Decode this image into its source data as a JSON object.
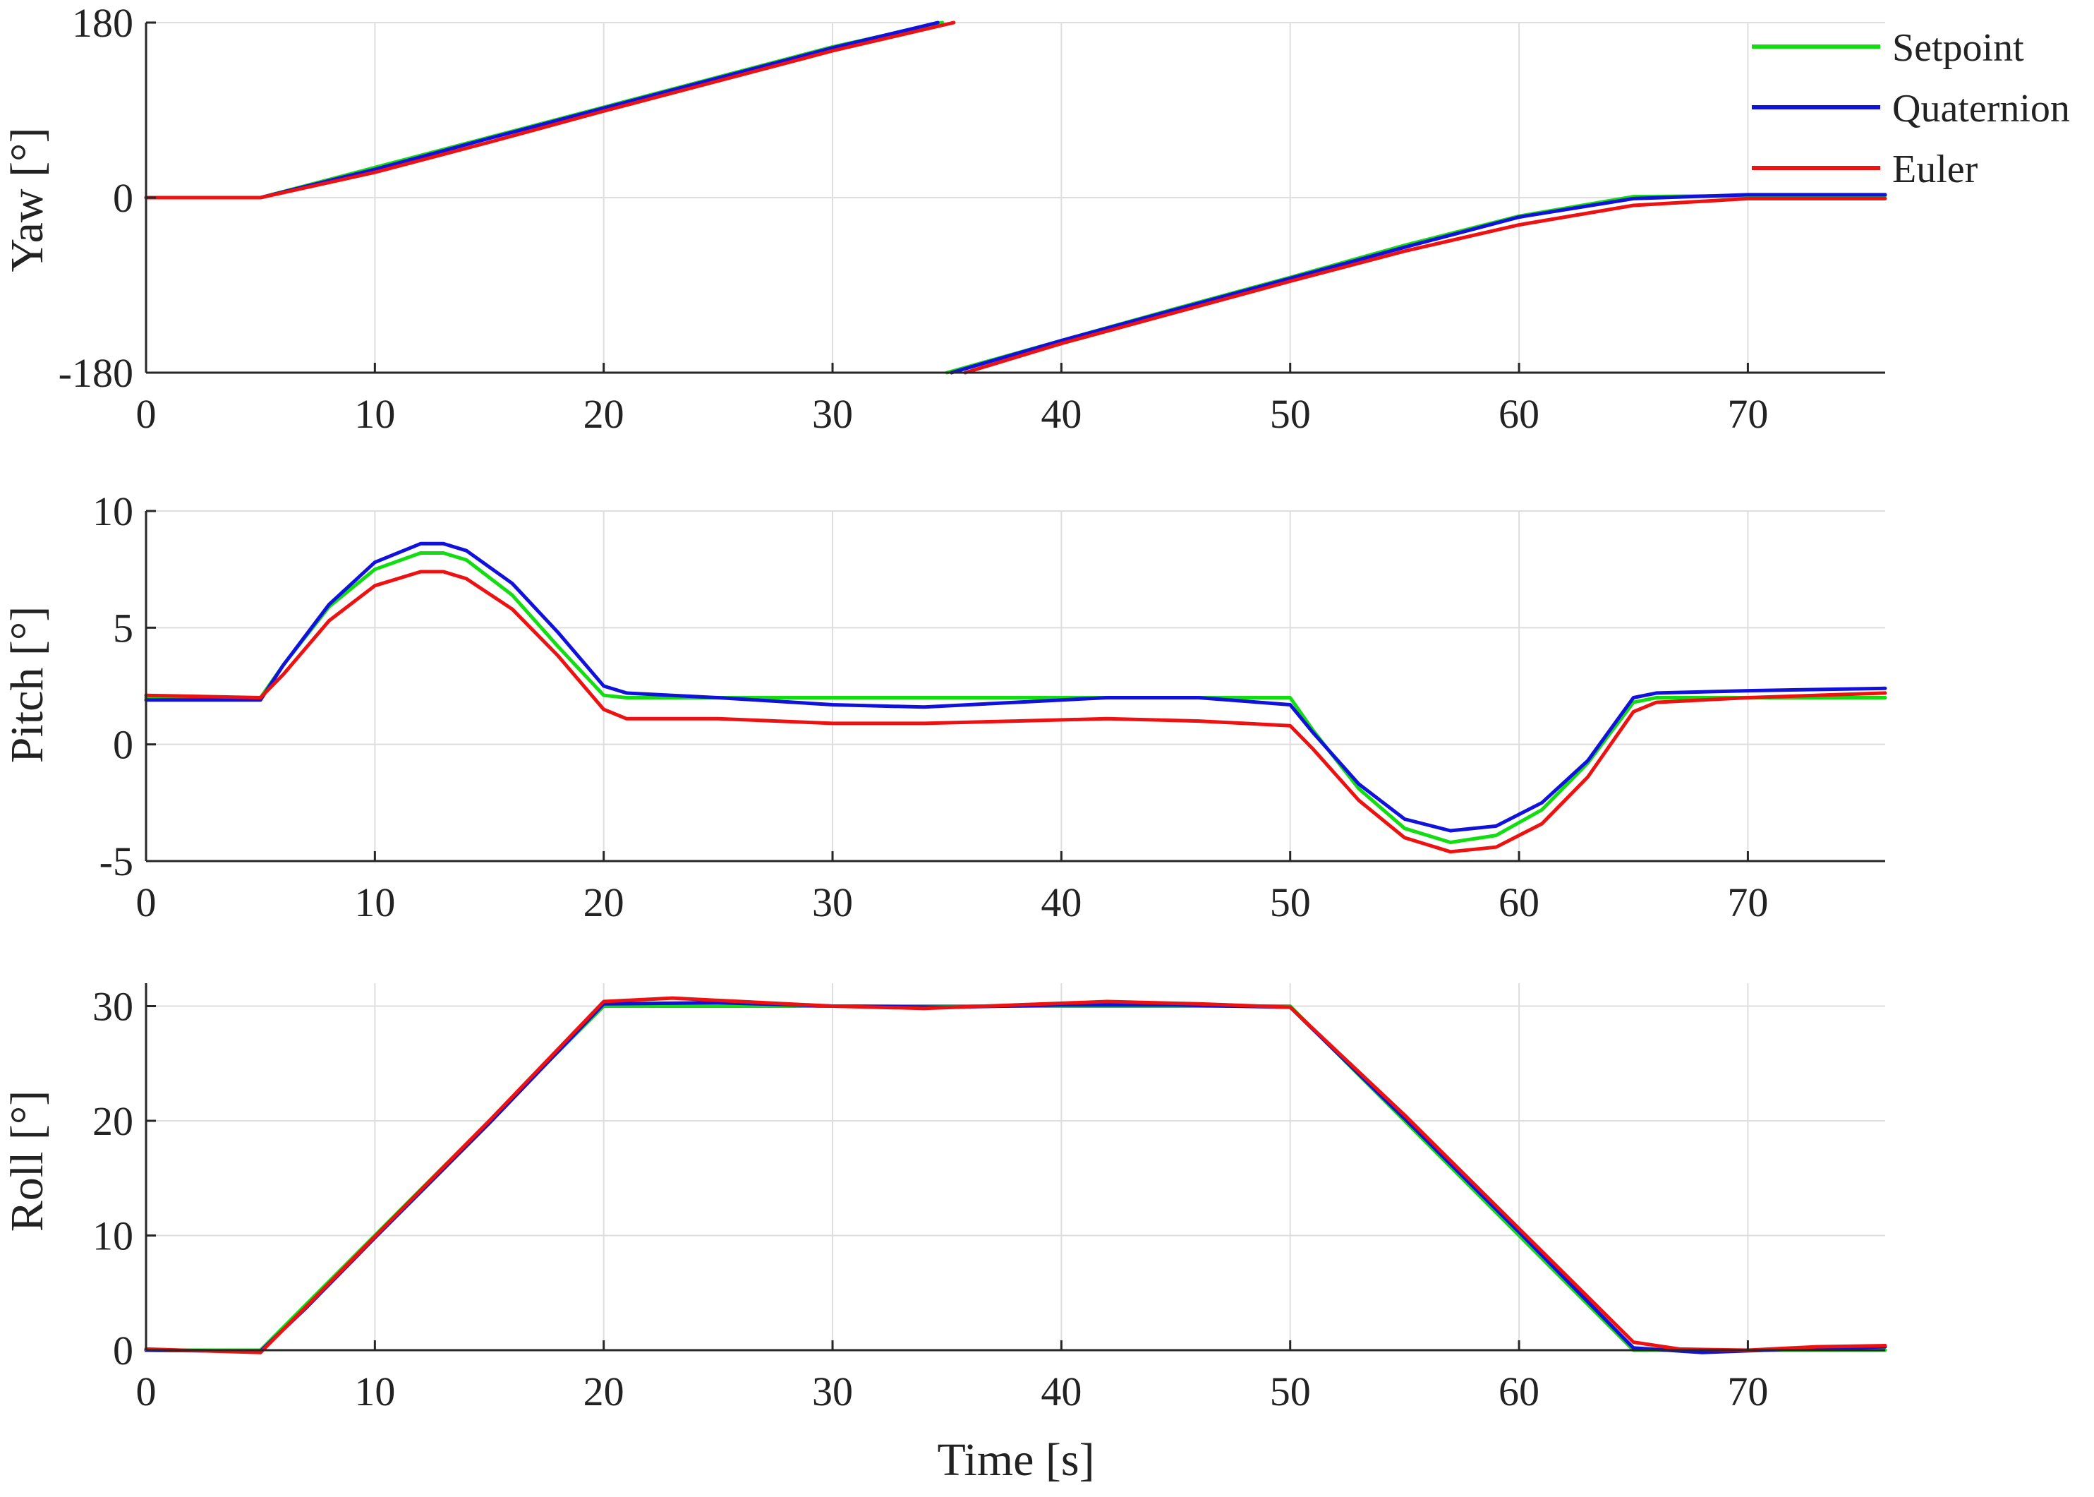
{
  "chart_data": [
    {
      "type": "line",
      "id": "yaw",
      "title": "",
      "ylabel": "Yaw [°]",
      "xlabel": "",
      "xlim": [
        0,
        76
      ],
      "ylim": [
        -180,
        180
      ],
      "xticks": [
        0,
        10,
        20,
        30,
        40,
        50,
        60,
        70
      ],
      "yticks": [
        -180,
        0,
        180
      ],
      "xtick_labels": [
        "0",
        "10",
        "20",
        "30",
        "40",
        "50",
        "60",
        "70"
      ],
      "ytick_labels": [
        "-180",
        "0",
        "180"
      ],
      "grid": true,
      "legend": "top-right",
      "series": [
        {
          "name": "Setpoint",
          "color": "#11dd11",
          "segments": [
            [
              [
                0,
                0
              ],
              [
                5,
                0
              ],
              [
                10,
                31
              ],
              [
                15,
                62
              ],
              [
                20,
                93
              ],
              [
                25,
                124
              ],
              [
                30,
                155
              ],
              [
                34.8,
                180
              ]
            ],
            [
              [
                35,
                -180
              ],
              [
                40,
                -147
              ],
              [
                45,
                -114
              ],
              [
                50,
                -82
              ],
              [
                55,
                -49
              ],
              [
                60,
                -19
              ],
              [
                65,
                1
              ],
              [
                70,
                2
              ],
              [
                76,
                2
              ]
            ]
          ]
        },
        {
          "name": "Quaternion",
          "color": "#1111dd",
          "segments": [
            [
              [
                0,
                0
              ],
              [
                5,
                0
              ],
              [
                10,
                29
              ],
              [
                15,
                61
              ],
              [
                20,
                92
              ],
              [
                25,
                123
              ],
              [
                30,
                154
              ],
              [
                34.6,
                180
              ]
            ],
            [
              [
                35.2,
                -180
              ],
              [
                40,
                -147
              ],
              [
                45,
                -115
              ],
              [
                50,
                -83
              ],
              [
                55,
                -51
              ],
              [
                60,
                -20
              ],
              [
                65,
                -1
              ],
              [
                70,
                3
              ],
              [
                76,
                3
              ]
            ]
          ]
        },
        {
          "name": "Euler",
          "color": "#ee1111",
          "segments": [
            [
              [
                0,
                0
              ],
              [
                5,
                0
              ],
              [
                10,
                26
              ],
              [
                15,
                57
              ],
              [
                20,
                89
              ],
              [
                25,
                120
              ],
              [
                30,
                151
              ],
              [
                35.3,
                180
              ]
            ],
            [
              [
                35.8,
                -180
              ],
              [
                40,
                -150
              ],
              [
                45,
                -118
              ],
              [
                50,
                -86
              ],
              [
                55,
                -55
              ],
              [
                60,
                -28
              ],
              [
                65,
                -8
              ],
              [
                70,
                -1
              ],
              [
                76,
                -1
              ]
            ]
          ]
        }
      ]
    },
    {
      "type": "line",
      "id": "pitch",
      "title": "",
      "ylabel": "Pitch [°]",
      "xlabel": "",
      "xlim": [
        0,
        76
      ],
      "ylim": [
        -5,
        10
      ],
      "xticks": [
        0,
        10,
        20,
        30,
        40,
        50,
        60,
        70
      ],
      "yticks": [
        -5,
        0,
        5,
        10
      ],
      "xtick_labels": [
        "0",
        "10",
        "20",
        "30",
        "40",
        "50",
        "60",
        "70"
      ],
      "ytick_labels": [
        "-5",
        "0",
        "5",
        "10"
      ],
      "grid": true,
      "series": [
        {
          "name": "Setpoint",
          "color": "#11dd11",
          "points": [
            [
              0,
              2
            ],
            [
              5,
              2
            ],
            [
              6,
              3.4
            ],
            [
              8,
              5.9
            ],
            [
              10,
              7.5
            ],
            [
              12,
              8.2
            ],
            [
              13,
              8.2
            ],
            [
              14,
              7.9
            ],
            [
              16,
              6.4
            ],
            [
              18,
              4.2
            ],
            [
              20,
              2.1
            ],
            [
              21,
              2
            ],
            [
              30,
              2
            ],
            [
              40,
              2
            ],
            [
              50,
              2
            ],
            [
              51,
              0.6
            ],
            [
              53,
              -1.9
            ],
            [
              55,
              -3.6
            ],
            [
              57,
              -4.2
            ],
            [
              59,
              -3.9
            ],
            [
              61,
              -2.8
            ],
            [
              63,
              -0.8
            ],
            [
              65,
              1.8
            ],
            [
              66,
              2
            ],
            [
              70,
              2
            ],
            [
              76,
              2
            ]
          ]
        },
        {
          "name": "Quaternion",
          "color": "#1111dd",
          "points": [
            [
              0,
              1.9
            ],
            [
              5,
              1.9
            ],
            [
              6,
              3.4
            ],
            [
              8,
              6
            ],
            [
              10,
              7.8
            ],
            [
              12,
              8.6
            ],
            [
              13,
              8.6
            ],
            [
              14,
              8.3
            ],
            [
              16,
              6.9
            ],
            [
              18,
              4.8
            ],
            [
              20,
              2.5
            ],
            [
              21,
              2.2
            ],
            [
              25,
              2
            ],
            [
              30,
              1.7
            ],
            [
              34,
              1.6
            ],
            [
              38,
              1.8
            ],
            [
              42,
              2
            ],
            [
              46,
              2
            ],
            [
              50,
              1.7
            ],
            [
              51,
              0.5
            ],
            [
              53,
              -1.7
            ],
            [
              55,
              -3.2
            ],
            [
              57,
              -3.7
            ],
            [
              59,
              -3.5
            ],
            [
              61,
              -2.5
            ],
            [
              63,
              -0.7
            ],
            [
              65,
              2
            ],
            [
              66,
              2.2
            ],
            [
              70,
              2.3
            ],
            [
              76,
              2.4
            ]
          ]
        },
        {
          "name": "Euler",
          "color": "#ee1111",
          "points": [
            [
              0,
              2.1
            ],
            [
              5,
              2
            ],
            [
              6,
              3
            ],
            [
              8,
              5.3
            ],
            [
              10,
              6.8
            ],
            [
              12,
              7.4
            ],
            [
              13,
              7.4
            ],
            [
              14,
              7.1
            ],
            [
              16,
              5.8
            ],
            [
              18,
              3.8
            ],
            [
              20,
              1.5
            ],
            [
              21,
              1.1
            ],
            [
              25,
              1.1
            ],
            [
              30,
              0.9
            ],
            [
              34,
              0.9
            ],
            [
              38,
              1
            ],
            [
              42,
              1.1
            ],
            [
              46,
              1
            ],
            [
              50,
              0.8
            ],
            [
              51,
              -0.2
            ],
            [
              53,
              -2.4
            ],
            [
              55,
              -4
            ],
            [
              57,
              -4.6
            ],
            [
              59,
              -4.4
            ],
            [
              61,
              -3.4
            ],
            [
              63,
              -1.4
            ],
            [
              65,
              1.4
            ],
            [
              66,
              1.8
            ],
            [
              70,
              2
            ],
            [
              76,
              2.2
            ]
          ]
        }
      ]
    },
    {
      "type": "line",
      "id": "roll",
      "title": "",
      "ylabel": "Roll [°]",
      "xlabel": "Time [s]",
      "xlim": [
        0,
        76
      ],
      "ylim": [
        0,
        32
      ],
      "xticks": [
        0,
        10,
        20,
        30,
        40,
        50,
        60,
        70
      ],
      "yticks": [
        0,
        10,
        20,
        30
      ],
      "xtick_labels": [
        "0",
        "10",
        "20",
        "30",
        "40",
        "50",
        "60",
        "70"
      ],
      "ytick_labels": [
        "0",
        "10",
        "20",
        "30"
      ],
      "grid": true,
      "series": [
        {
          "name": "Setpoint",
          "color": "#11dd11",
          "points": [
            [
              0,
              0
            ],
            [
              5,
              0
            ],
            [
              7,
              4
            ],
            [
              10,
              10
            ],
            [
              15,
              20
            ],
            [
              20,
              30
            ],
            [
              30,
              30
            ],
            [
              40,
              30
            ],
            [
              50,
              30
            ],
            [
              55,
              20
            ],
            [
              60,
              10
            ],
            [
              65,
              0
            ],
            [
              70,
              0
            ],
            [
              76,
              0
            ]
          ]
        },
        {
          "name": "Quaternion",
          "color": "#1111dd",
          "points": [
            [
              0,
              0
            ],
            [
              5,
              -0.1
            ],
            [
              7,
              3.7
            ],
            [
              10,
              9.8
            ],
            [
              15,
              19.8
            ],
            [
              20,
              30.2
            ],
            [
              25,
              30.3
            ],
            [
              30,
              30
            ],
            [
              35,
              29.9
            ],
            [
              40,
              30.1
            ],
            [
              45,
              30.1
            ],
            [
              50,
              29.9
            ],
            [
              55,
              20.2
            ],
            [
              60,
              10.3
            ],
            [
              65,
              0.2
            ],
            [
              68,
              -0.2
            ],
            [
              72,
              0.1
            ],
            [
              76,
              0.3
            ]
          ]
        },
        {
          "name": "Euler",
          "color": "#ee1111",
          "points": [
            [
              0,
              0.1
            ],
            [
              5,
              -0.2
            ],
            [
              7,
              3.8
            ],
            [
              10,
              9.9
            ],
            [
              15,
              20
            ],
            [
              20,
              30.4
            ],
            [
              23,
              30.7
            ],
            [
              26,
              30.4
            ],
            [
              30,
              30
            ],
            [
              34,
              29.8
            ],
            [
              38,
              30.1
            ],
            [
              42,
              30.4
            ],
            [
              46,
              30.2
            ],
            [
              50,
              29.9
            ],
            [
              55,
              20.5
            ],
            [
              60,
              10.6
            ],
            [
              65,
              0.7
            ],
            [
              67,
              0.1
            ],
            [
              70,
              0
            ],
            [
              73,
              0.3
            ],
            [
              76,
              0.4
            ]
          ]
        }
      ]
    }
  ]
}
